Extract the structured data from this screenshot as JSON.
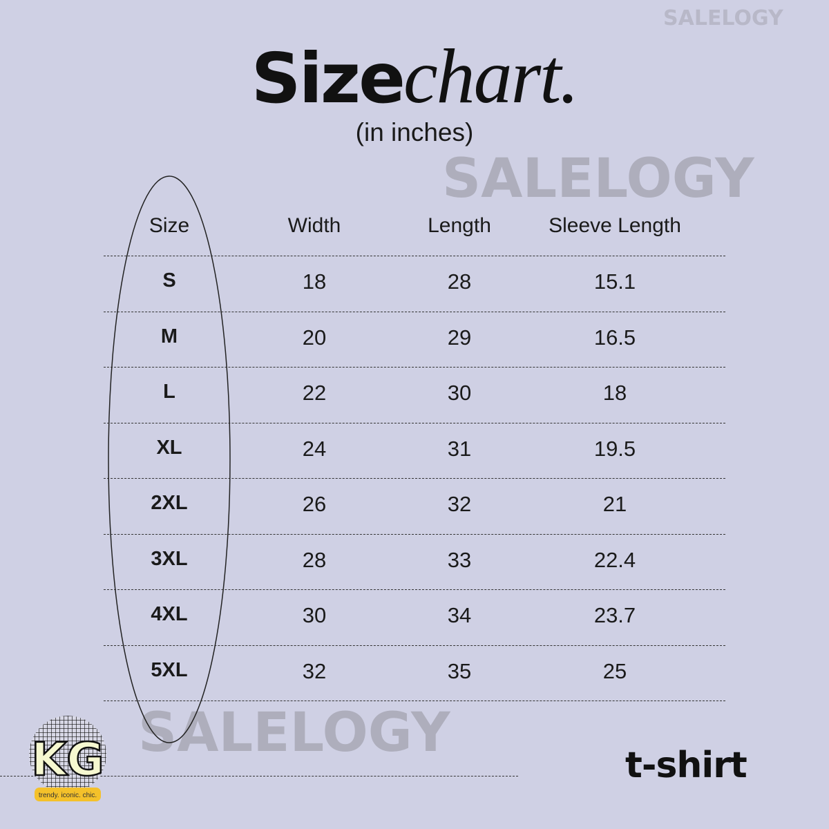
{
  "title": {
    "bold": "Size",
    "script": "chart.",
    "subtitle": "(in inches)"
  },
  "watermark": "SALELOGY",
  "table": {
    "headers": [
      "Size",
      "Width",
      "Length",
      "Sleeve Length"
    ],
    "rows": [
      [
        "S",
        "18",
        "28",
        "15.1"
      ],
      [
        "M",
        "20",
        "29",
        "16.5"
      ],
      [
        "L",
        "22",
        "30",
        "18"
      ],
      [
        "XL",
        "24",
        "31",
        "19.5"
      ],
      [
        "2XL",
        "26",
        "32",
        "21"
      ],
      [
        "3XL",
        "28",
        "33",
        "22.4"
      ],
      [
        "4XL",
        "30",
        "34",
        "23.7"
      ],
      [
        "5XL",
        "32",
        "35",
        "25"
      ]
    ]
  },
  "product": "t-shirt",
  "logo": {
    "letters": "KG",
    "tagline": "trendy. iconic. chic.",
    "colors": {
      "letters": "#f6f8d0",
      "tag": "#f4c12a"
    }
  },
  "colors": {
    "background": "#cfd0e4",
    "watermark": "#a9a9b6"
  }
}
